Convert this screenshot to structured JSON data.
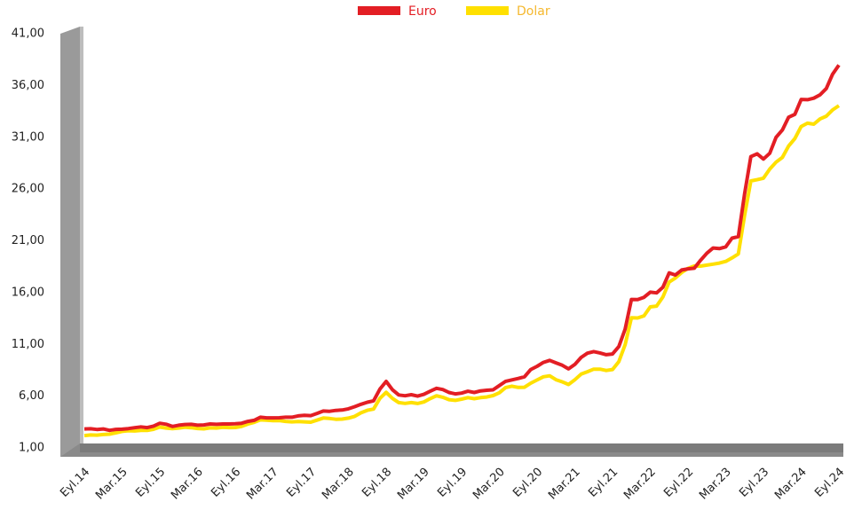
{
  "chart_data": {
    "type": "line",
    "categories": [
      "Eyl.14",
      null,
      null,
      null,
      null,
      null,
      "Mar.15",
      null,
      null,
      null,
      null,
      null,
      "Eyl.15",
      null,
      null,
      null,
      null,
      null,
      "Mar.16",
      null,
      null,
      null,
      null,
      null,
      "Eyl.16",
      null,
      null,
      null,
      null,
      null,
      "Mar.17",
      null,
      null,
      null,
      null,
      null,
      "Eyl.17",
      null,
      null,
      null,
      null,
      null,
      "Mar.18",
      null,
      null,
      null,
      null,
      null,
      "Eyl.18",
      null,
      null,
      null,
      null,
      null,
      "Mar.19",
      null,
      null,
      null,
      null,
      null,
      "Eyl.19",
      null,
      null,
      null,
      null,
      null,
      "Mar.20",
      null,
      null,
      null,
      null,
      null,
      "Eyl.20",
      null,
      null,
      null,
      null,
      null,
      "Mar.21",
      null,
      null,
      null,
      null,
      null,
      "Eyl.21",
      null,
      null,
      null,
      null,
      null,
      "Mar.22",
      null,
      null,
      null,
      null,
      null,
      "Eyl.22",
      null,
      null,
      null,
      null,
      null,
      "Mar.23",
      null,
      null,
      null,
      null,
      null,
      "Eyl.23",
      null,
      null,
      null,
      null,
      null,
      "Mar.24",
      null,
      null,
      null,
      null,
      null,
      "Eyl.24"
    ],
    "series": [
      {
        "name": "Euro",
        "color": "#e31e24",
        "values": [
          2.83,
          2.85,
          2.78,
          2.83,
          2.7,
          2.79,
          2.81,
          2.87,
          2.95,
          3.03,
          2.96,
          3.11,
          3.38,
          3.29,
          3.07,
          3.19,
          3.26,
          3.28,
          3.19,
          3.22,
          3.31,
          3.28,
          3.31,
          3.31,
          3.33,
          3.38,
          3.56,
          3.66,
          3.96,
          3.9,
          3.9,
          3.91,
          3.96,
          3.96,
          4.09,
          4.15,
          4.12,
          4.33,
          4.56,
          4.54,
          4.62,
          4.66,
          4.78,
          4.98,
          5.21,
          5.41,
          5.55,
          6.67,
          7.42,
          6.62,
          6.11,
          6.04,
          6.14,
          6.0,
          6.17,
          6.47,
          6.76,
          6.64,
          6.35,
          6.22,
          6.29,
          6.47,
          6.35,
          6.51,
          6.57,
          6.61,
          7.02,
          7.43,
          7.57,
          7.71,
          7.87,
          8.57,
          8.88,
          9.26,
          9.45,
          9.21,
          8.98,
          8.63,
          9.06,
          9.74,
          10.15,
          10.3,
          10.17,
          10.0,
          10.07,
          10.79,
          12.48,
          15.34,
          15.32,
          15.54,
          16.04,
          15.97,
          16.51,
          17.9,
          17.69,
          18.18,
          18.29,
          18.35,
          19.12,
          19.81,
          20.31,
          20.25,
          20.42,
          21.26,
          21.4,
          25.56,
          29.13,
          29.4,
          28.9,
          29.45,
          31.0,
          31.7,
          32.93,
          33.21,
          34.65,
          34.63,
          34.77,
          35.1,
          35.71,
          37.09,
          37.97
        ]
      },
      {
        "name": "Dolar",
        "color": "#ffe000",
        "values": [
          2.19,
          2.25,
          2.23,
          2.29,
          2.33,
          2.46,
          2.59,
          2.66,
          2.64,
          2.7,
          2.69,
          2.8,
          3.01,
          2.92,
          2.86,
          2.92,
          3.0,
          2.95,
          2.88,
          2.84,
          2.94,
          2.92,
          2.99,
          2.96,
          2.97,
          3.07,
          3.3,
          3.47,
          3.71,
          3.67,
          3.64,
          3.64,
          3.56,
          3.52,
          3.55,
          3.52,
          3.48,
          3.68,
          3.89,
          3.84,
          3.77,
          3.78,
          3.88,
          4.05,
          4.39,
          4.63,
          4.75,
          5.78,
          6.37,
          5.78,
          5.38,
          5.3,
          5.38,
          5.29,
          5.44,
          5.76,
          6.04,
          5.89,
          5.66,
          5.59,
          5.71,
          5.86,
          5.75,
          5.86,
          5.92,
          6.05,
          6.33,
          6.83,
          6.96,
          6.84,
          6.86,
          7.25,
          7.56,
          7.87,
          7.96,
          7.59,
          7.38,
          7.12,
          7.58,
          8.13,
          8.36,
          8.61,
          8.61,
          8.48,
          8.57,
          9.33,
          10.97,
          13.57,
          13.55,
          13.75,
          14.62,
          14.7,
          15.57,
          17.02,
          17.41,
          17.94,
          18.34,
          18.57,
          18.56,
          18.65,
          18.75,
          18.85,
          19.01,
          19.35,
          19.73,
          23.48,
          26.78,
          26.9,
          27.05,
          27.93,
          28.6,
          29.05,
          30.15,
          30.88,
          32.04,
          32.36,
          32.26,
          32.77,
          33.03,
          33.64,
          34.05
        ]
      }
    ],
    "ylim": [
      1,
      41
    ],
    "yticks": [
      {
        "value": 1,
        "label": "1,00"
      },
      {
        "value": 6,
        "label": "6,00"
      },
      {
        "value": 11,
        "label": "11,00"
      },
      {
        "value": 16,
        "label": "16,00"
      },
      {
        "value": 21,
        "label": "21,00"
      },
      {
        "value": 26,
        "label": "26,00"
      },
      {
        "value": 31,
        "label": "31,00"
      },
      {
        "value": 36,
        "label": "36,00"
      },
      {
        "value": 41,
        "label": "41,00"
      }
    ],
    "legend": "top"
  }
}
